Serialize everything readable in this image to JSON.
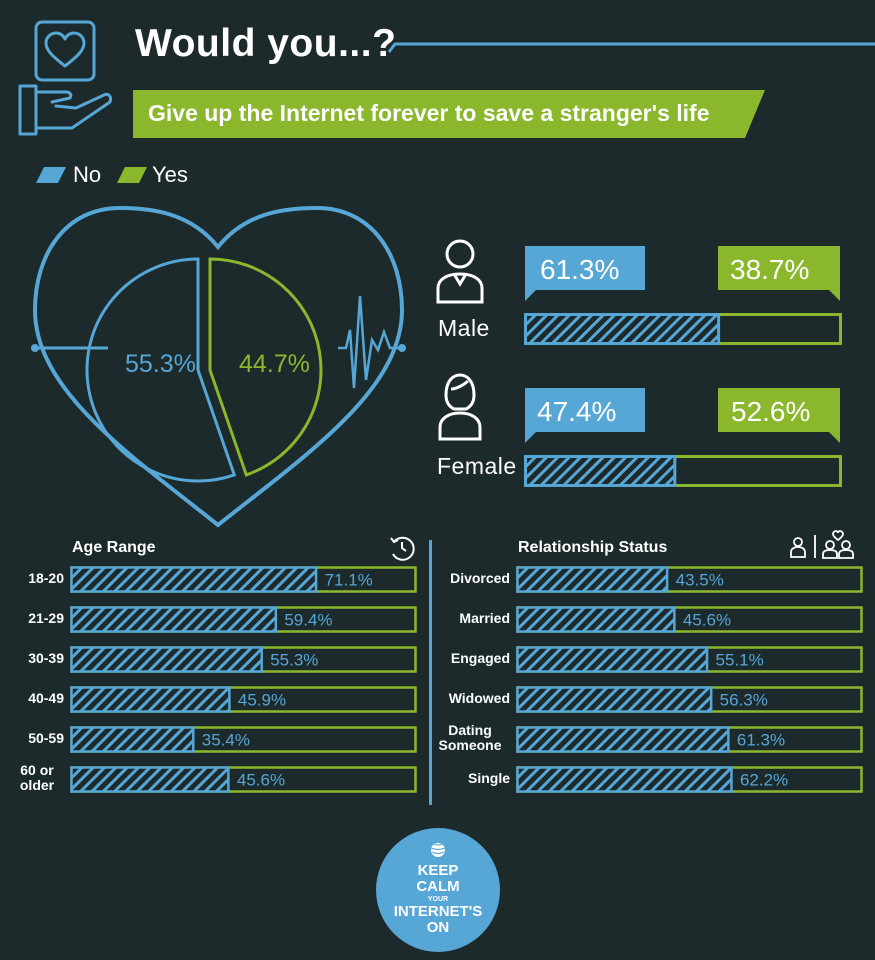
{
  "header": {
    "title": "Would you...?",
    "subtitle": "Give up the Internet forever to save a stranger's life"
  },
  "legend": {
    "no_label": "No",
    "yes_label": "Yes"
  },
  "colors": {
    "no": "#56a6d6",
    "yes": "#8ab72b",
    "background": "#1c2a2c"
  },
  "chart_data": [
    {
      "type": "pie",
      "labels": [
        "No",
        "Yes"
      ],
      "values": [
        55.3,
        44.7
      ],
      "display": [
        "55.3%",
        "44.7%"
      ]
    },
    {
      "type": "bar",
      "categories": [
        "Male",
        "Female"
      ],
      "series": [
        {
          "name": "No",
          "values": [
            61.3,
            47.4
          ]
        },
        {
          "name": "Yes",
          "values": [
            38.7,
            52.6
          ]
        }
      ],
      "display_no": [
        "61.3%",
        "47.4%"
      ],
      "display_yes": [
        "38.7%",
        "52.6%"
      ]
    },
    {
      "type": "bar",
      "title": "Age Range",
      "categories": [
        "18-20",
        "21-29",
        "30-39",
        "40-49",
        "50-59",
        "60 or older"
      ],
      "values": [
        71.1,
        59.4,
        55.3,
        45.9,
        35.4,
        45.6
      ],
      "display": [
        "71.1%",
        "59.4%",
        "55.3%",
        "45.9%",
        "35.4%",
        "45.6%"
      ]
    },
    {
      "type": "bar",
      "title": "Relationship Status",
      "categories": [
        "Divorced",
        "Married",
        "Engaged",
        "Widowed",
        "Dating Someone",
        "Single"
      ],
      "values": [
        43.5,
        45.6,
        55.1,
        56.3,
        61.3,
        62.2
      ],
      "display": [
        "43.5%",
        "45.6%",
        "55.1%",
        "56.3%",
        "61.3%",
        "62.2%"
      ]
    }
  ],
  "badge": {
    "line1": "KEEP",
    "line2": "CALM",
    "line3": "YOUR",
    "line4": "INTERNET'S",
    "line5": "ON"
  },
  "icons": {
    "header": "hand-holding-heart-icon",
    "male": "male-user-icon",
    "female": "female-user-icon",
    "age": "clock-history-icon",
    "relationship": "people-heart-icon",
    "badge": "globe-logo-icon"
  }
}
